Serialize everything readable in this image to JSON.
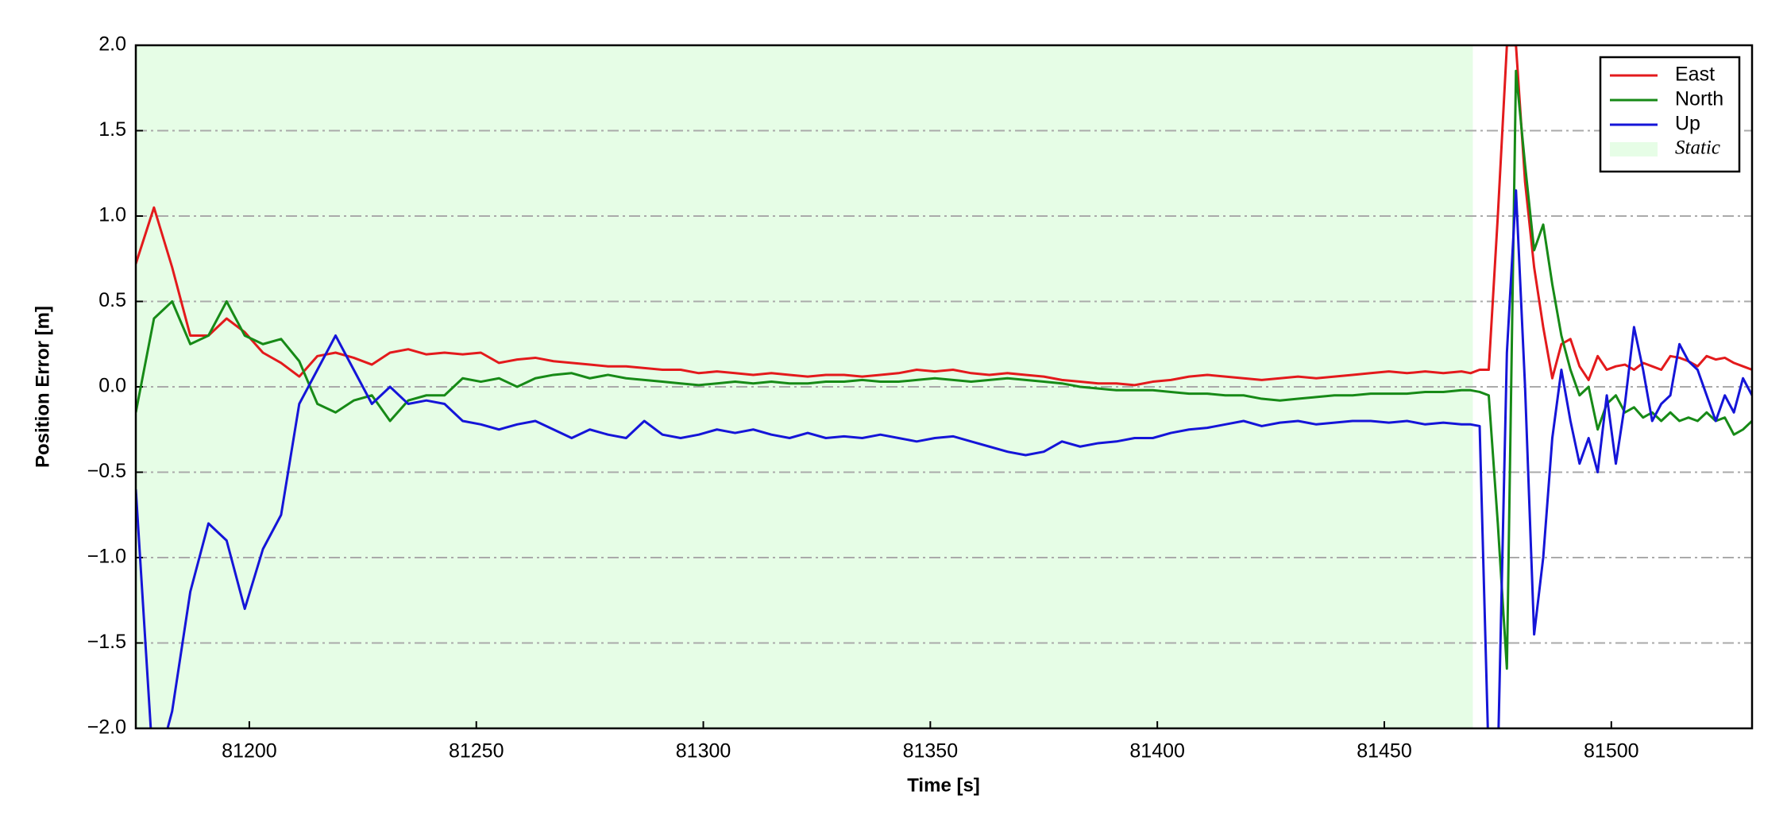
{
  "chart_data": {
    "type": "line",
    "xlabel": "Time [s]",
    "ylabel": "Position Error [m]",
    "x": [
      81175,
      81179,
      81183,
      81187,
      81191,
      81195,
      81199,
      81203,
      81207,
      81211,
      81215,
      81219,
      81223,
      81227,
      81231,
      81235,
      81239,
      81243,
      81247,
      81251,
      81255,
      81259,
      81263,
      81267,
      81271,
      81275,
      81279,
      81283,
      81287,
      81291,
      81295,
      81299,
      81303,
      81307,
      81311,
      81315,
      81319,
      81323,
      81327,
      81331,
      81335,
      81339,
      81343,
      81347,
      81351,
      81355,
      81359,
      81363,
      81367,
      81371,
      81375,
      81379,
      81383,
      81387,
      81391,
      81395,
      81399,
      81403,
      81407,
      81411,
      81415,
      81419,
      81423,
      81427,
      81431,
      81435,
      81439,
      81443,
      81447,
      81451,
      81455,
      81459,
      81463,
      81467,
      81469,
      81471,
      81473,
      81475,
      81477,
      81479,
      81481,
      81483,
      81485,
      81487,
      81489,
      81491,
      81493,
      81495,
      81497,
      81499,
      81501,
      81503,
      81505,
      81507,
      81509,
      81511,
      81513,
      81515,
      81517,
      81519,
      81521,
      81523,
      81525,
      81527,
      81529,
      81531
    ],
    "series": [
      {
        "name": "East",
        "color": "#e31a1c",
        "values": [
          0.72,
          1.05,
          0.7,
          0.3,
          0.3,
          0.4,
          0.32,
          0.2,
          0.14,
          0.06,
          0.18,
          0.2,
          0.17,
          0.13,
          0.2,
          0.22,
          0.19,
          0.2,
          0.19,
          0.2,
          0.14,
          0.16,
          0.17,
          0.15,
          0.14,
          0.13,
          0.12,
          0.12,
          0.11,
          0.1,
          0.1,
          0.08,
          0.09,
          0.08,
          0.07,
          0.08,
          0.07,
          0.06,
          0.07,
          0.07,
          0.06,
          0.07,
          0.08,
          0.1,
          0.09,
          0.1,
          0.08,
          0.07,
          0.08,
          0.07,
          0.06,
          0.04,
          0.03,
          0.02,
          0.02,
          0.01,
          0.03,
          0.04,
          0.06,
          0.07,
          0.06,
          0.05,
          0.04,
          0.05,
          0.06,
          0.05,
          0.06,
          0.07,
          0.08,
          0.09,
          0.08,
          0.09,
          0.08,
          0.09,
          0.08,
          0.1,
          0.1,
          1.0,
          2.0,
          2.0,
          1.2,
          0.7,
          0.35,
          0.05,
          0.25,
          0.28,
          0.12,
          0.04,
          0.18,
          0.1,
          0.12,
          0.13,
          0.1,
          0.14,
          0.12,
          0.1,
          0.18,
          0.17,
          0.15,
          0.12,
          0.18,
          0.16,
          0.17,
          0.14,
          0.12,
          0.1
        ]
      },
      {
        "name": "North",
        "color": "#178a17",
        "values": [
          -0.15,
          0.4,
          0.5,
          0.25,
          0.3,
          0.5,
          0.3,
          0.25,
          0.28,
          0.15,
          -0.1,
          -0.15,
          -0.08,
          -0.05,
          -0.2,
          -0.08,
          -0.05,
          -0.05,
          0.05,
          0.03,
          0.05,
          0.0,
          0.05,
          0.07,
          0.08,
          0.05,
          0.07,
          0.05,
          0.04,
          0.03,
          0.02,
          0.01,
          0.02,
          0.03,
          0.02,
          0.03,
          0.02,
          0.02,
          0.03,
          0.03,
          0.04,
          0.03,
          0.03,
          0.04,
          0.05,
          0.04,
          0.03,
          0.04,
          0.05,
          0.04,
          0.03,
          0.02,
          0.0,
          -0.01,
          -0.02,
          -0.02,
          -0.02,
          -0.03,
          -0.04,
          -0.04,
          -0.05,
          -0.05,
          -0.07,
          -0.08,
          -0.07,
          -0.06,
          -0.05,
          -0.05,
          -0.04,
          -0.04,
          -0.04,
          -0.03,
          -0.03,
          -0.02,
          -0.02,
          -0.03,
          -0.05,
          -0.8,
          -1.65,
          1.85,
          1.3,
          0.8,
          0.95,
          0.6,
          0.3,
          0.1,
          -0.05,
          0.0,
          -0.25,
          -0.1,
          -0.05,
          -0.15,
          -0.12,
          -0.18,
          -0.15,
          -0.2,
          -0.15,
          -0.2,
          -0.18,
          -0.2,
          -0.15,
          -0.2,
          -0.18,
          -0.28,
          -0.25,
          -0.2
        ]
      },
      {
        "name": "Up",
        "color": "#1515d8",
        "values": [
          -0.6,
          -2.3,
          -1.9,
          -1.2,
          -0.8,
          -0.9,
          -1.3,
          -0.95,
          -0.75,
          -0.1,
          0.1,
          0.3,
          0.1,
          -0.1,
          0.0,
          -0.1,
          -0.08,
          -0.1,
          -0.2,
          -0.22,
          -0.25,
          -0.22,
          -0.2,
          -0.25,
          -0.3,
          -0.25,
          -0.28,
          -0.3,
          -0.2,
          -0.28,
          -0.3,
          -0.28,
          -0.25,
          -0.27,
          -0.25,
          -0.28,
          -0.3,
          -0.27,
          -0.3,
          -0.29,
          -0.3,
          -0.28,
          -0.3,
          -0.32,
          -0.3,
          -0.29,
          -0.32,
          -0.35,
          -0.38,
          -0.4,
          -0.38,
          -0.32,
          -0.35,
          -0.33,
          -0.32,
          -0.3,
          -0.3,
          -0.27,
          -0.25,
          -0.24,
          -0.22,
          -0.2,
          -0.23,
          -0.21,
          -0.2,
          -0.22,
          -0.21,
          -0.2,
          -0.2,
          -0.21,
          -0.2,
          -0.22,
          -0.21,
          -0.22,
          -0.22,
          -0.23,
          -2.2,
          -2.2,
          0.2,
          1.15,
          0.0,
          -1.45,
          -1.0,
          -0.3,
          0.1,
          -0.2,
          -0.45,
          -0.3,
          -0.5,
          -0.05,
          -0.45,
          -0.1,
          0.35,
          0.1,
          -0.2,
          -0.1,
          -0.05,
          0.25,
          0.15,
          0.1,
          -0.05,
          -0.2,
          -0.05,
          -0.15,
          0.05,
          -0.05
        ]
      }
    ],
    "static_region": {
      "label": "Static",
      "xlim": [
        81175,
        81469.5
      ],
      "color": "#e6fde6"
    },
    "xlim": [
      81175,
      81531
    ],
    "ylim": [
      -2,
      2
    ],
    "xticks": [
      81200,
      81250,
      81300,
      81350,
      81400,
      81450,
      81500
    ],
    "yticks": [
      {
        "value": -2,
        "label": "−2.0"
      },
      {
        "value": -1.5,
        "label": "−1.5"
      },
      {
        "value": -1,
        "label": "−1.0"
      },
      {
        "value": -0.5,
        "label": "−0.5"
      },
      {
        "value": 0,
        "label": "0.0"
      },
      {
        "value": 0.5,
        "label": "0.5"
      },
      {
        "value": 1,
        "label": "1.0"
      },
      {
        "value": 1.5,
        "label": "1.5"
      },
      {
        "value": 2,
        "label": "2.0"
      }
    ],
    "grid": true,
    "legend": "upper right"
  }
}
